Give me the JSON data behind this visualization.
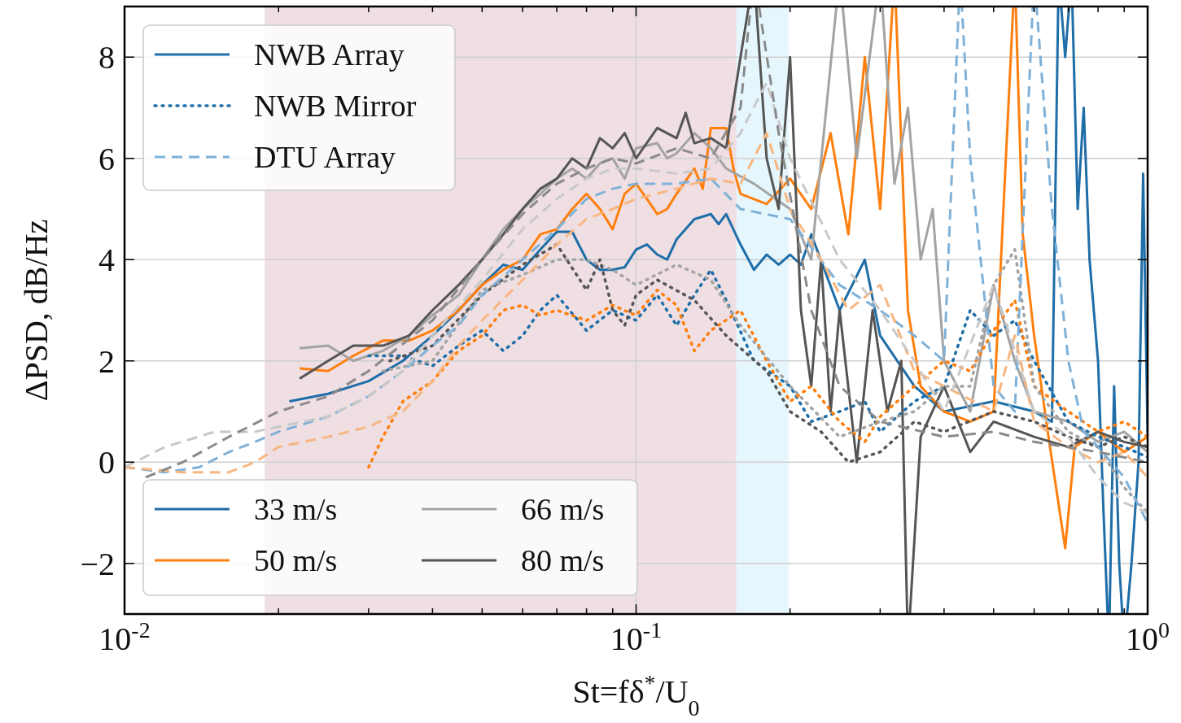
{
  "chart_data": {
    "type": "line",
    "xlabel": "St=fδ$^{*}$/U$_{0}$",
    "ylabel": "ΔPSD, dB/Hz",
    "log": "x",
    "grid": true,
    "xlim": [
      0.01,
      1
    ],
    "ylim": [
      -3,
      9
    ],
    "xticks": [
      {
        "value": 0.01,
        "label": "10$^{-2}$"
      },
      {
        "value": 0.02,
        "label": null
      },
      {
        "value": 0.03,
        "label": null
      },
      {
        "value": 0.04,
        "label": null
      },
      {
        "value": 0.05,
        "label": null
      },
      {
        "value": 0.06,
        "label": null
      },
      {
        "value": 0.07,
        "label": null
      },
      {
        "value": 0.08,
        "label": null
      },
      {
        "value": 0.09,
        "label": null
      },
      {
        "value": 0.1,
        "label": "10$^{-1}$"
      },
      {
        "value": 0.2,
        "label": null
      },
      {
        "value": 0.3,
        "label": null
      },
      {
        "value": 0.4,
        "label": null
      },
      {
        "value": 0.5,
        "label": null
      },
      {
        "value": 0.6,
        "label": null
      },
      {
        "value": 0.7,
        "label": null
      },
      {
        "value": 0.8,
        "label": null
      },
      {
        "value": 0.9,
        "label": null
      },
      {
        "value": 1,
        "label": "10$^{0}$"
      }
    ],
    "yticks": [
      -2,
      0,
      2,
      4,
      6,
      8
    ],
    "bands": [
      {
        "axis": "x",
        "from": 0.0188,
        "to": 0.199,
        "color": "#e6f6fd"
      },
      {
        "axis": "x",
        "from": 0.0188,
        "to": 0.157,
        "color": "#efdfe3"
      }
    ],
    "annotations": [
      "NWB Array",
      "NWB Mirror",
      "DTU Array",
      "33 m/s",
      "50 m/s",
      "66 m/s",
      "80 m/s"
    ],
    "series": [
      {
        "color": "#1f6ea8",
        "line_style": "solid",
        "x": [
          0.021,
          0.025,
          0.03,
          0.035,
          0.04,
          0.045,
          0.05,
          0.055,
          0.06,
          0.065,
          0.07,
          0.075,
          0.08,
          0.085,
          0.09,
          0.095,
          0.1,
          0.105,
          0.11,
          0.115,
          0.12,
          0.13,
          0.14,
          0.145,
          0.15,
          0.16,
          0.17,
          0.18,
          0.19,
          0.2,
          0.21,
          0.22,
          0.25,
          0.28,
          0.3,
          0.35,
          0.4,
          0.5,
          0.6,
          0.65,
          0.67,
          0.69,
          0.71,
          0.73,
          0.75,
          0.77,
          0.8,
          0.82,
          0.84,
          0.86,
          0.88,
          0.9,
          0.93,
          0.96,
          0.98,
          1.0
        ],
        "values": [
          1.2,
          1.35,
          1.6,
          2.0,
          2.5,
          3.0,
          3.5,
          3.9,
          3.8,
          4.2,
          4.55,
          4.55,
          4.0,
          3.8,
          3.8,
          3.85,
          4.2,
          4.3,
          4.1,
          4.0,
          4.4,
          4.8,
          4.9,
          4.7,
          4.9,
          4.3,
          3.8,
          4.1,
          3.9,
          4.1,
          3.9,
          4.5,
          3.0,
          4.0,
          2.5,
          1.5,
          1.0,
          1.2,
          1.0,
          0.8,
          null,
          8.0,
          null,
          5,
          7,
          4,
          2,
          -1,
          null,
          1.5,
          -2,
          null,
          -2,
          0,
          5.7,
          0.5
        ]
      },
      {
        "color": "#ff7f0e",
        "line_style": "solid",
        "x": [
          0.022,
          0.025,
          0.028,
          0.032,
          0.036,
          0.04,
          0.045,
          0.05,
          0.055,
          0.06,
          0.065,
          0.07,
          0.075,
          0.08,
          0.085,
          0.09,
          0.095,
          0.1,
          0.105,
          0.11,
          0.115,
          0.12,
          0.13,
          0.135,
          0.14,
          0.15,
          0.155,
          0.16,
          0.18,
          0.2,
          0.22,
          0.24,
          0.26,
          0.28,
          0.3,
          0.32,
          0.34,
          0.36,
          0.4,
          0.45,
          0.5,
          0.55,
          0.57,
          0.6,
          0.64,
          0.69,
          0.72,
          0.8,
          0.9,
          1.0
        ],
        "values": [
          1.85,
          1.8,
          2.1,
          2.4,
          2.4,
          2.6,
          3.0,
          3.5,
          3.8,
          4.0,
          4.5,
          4.6,
          5.0,
          5.3,
          5.0,
          4.6,
          5.3,
          5.5,
          5.2,
          4.9,
          5.0,
          5.3,
          5.8,
          5.4,
          6.6,
          6.6,
          5.8,
          5.3,
          5.1,
          5.6,
          5.0,
          6.5,
          4.5,
          8.0,
          5.0,
          null,
          3.0,
          1.5,
          1.0,
          0.8,
          1.0,
          null,
          4.5,
          2.5,
          0.5,
          -1.7,
          0.3,
          0.6,
          0.2,
          0.5
        ]
      },
      {
        "color": "#a3a3a3",
        "line_style": "solid",
        "x": [
          0.022,
          0.025,
          0.028,
          0.032,
          0.036,
          0.04,
          0.045,
          0.05,
          0.055,
          0.06,
          0.065,
          0.07,
          0.075,
          0.08,
          0.085,
          0.09,
          0.095,
          0.1,
          0.11,
          0.115,
          0.12,
          0.13,
          0.14,
          0.15,
          0.17,
          0.2,
          0.22,
          0.25,
          0.27,
          0.3,
          0.32,
          0.34,
          0.36,
          0.38,
          0.4,
          0.45,
          0.5,
          0.55,
          0.6,
          0.7,
          0.8,
          0.9,
          1.0
        ],
        "values": [
          2.25,
          2.3,
          2.0,
          2.2,
          2.5,
          2.9,
          3.3,
          4.0,
          4.6,
          5.0,
          5.3,
          5.6,
          5.8,
          5.6,
          5.9,
          6.0,
          5.6,
          6.2,
          6.3,
          6.0,
          6.1,
          6.5,
          6.2,
          5.8,
          5.5,
          5.0,
          4.0,
          null,
          6.0,
          null,
          5.5,
          7.0,
          4.0,
          5.0,
          2.0,
          1.0,
          3.5,
          2.0,
          1.0,
          0.8,
          0.4,
          0.6,
          0.2
        ]
      },
      {
        "color": "#555555",
        "line_style": "solid",
        "x": [
          0.022,
          0.025,
          0.028,
          0.032,
          0.036,
          0.04,
          0.045,
          0.05,
          0.055,
          0.06,
          0.065,
          0.07,
          0.075,
          0.08,
          0.085,
          0.09,
          0.095,
          0.1,
          0.11,
          0.12,
          0.125,
          0.13,
          0.14,
          0.15,
          0.16,
          0.17,
          0.18,
          0.19,
          0.2,
          0.21,
          0.22,
          0.23,
          0.24,
          0.25,
          0.27,
          0.29,
          0.31,
          0.33,
          0.34,
          0.36,
          0.4,
          0.45,
          0.5,
          0.6,
          0.7,
          0.8,
          0.9,
          1.0
        ],
        "values": [
          1.65,
          2.0,
          2.3,
          2.3,
          2.5,
          3.0,
          3.5,
          4.0,
          4.5,
          5.0,
          5.4,
          5.6,
          6.0,
          5.8,
          6.4,
          6.2,
          6.5,
          6.0,
          6.6,
          6.4,
          6.9,
          6.3,
          6.4,
          6.2,
          8.0,
          null,
          6.0,
          5.0,
          8.0,
          3.0,
          1.5,
          4.0,
          1.0,
          3.0,
          0.0,
          3.0,
          1.0,
          2.0,
          null,
          0.5,
          1.5,
          0.2,
          0.8,
          0.5,
          0.3,
          0.6,
          0.4,
          0.3
        ]
      },
      {
        "color": "#1f6ea8",
        "line_style": "dotted",
        "x": [
          0.03,
          0.035,
          0.04,
          0.045,
          0.05,
          0.055,
          0.06,
          0.065,
          0.07,
          0.08,
          0.09,
          0.1,
          0.11,
          0.12,
          0.13,
          0.14,
          0.15,
          0.17,
          0.2,
          0.22,
          0.25,
          0.28,
          0.3,
          0.35,
          0.4,
          0.45,
          0.5,
          0.55,
          0.6,
          0.7,
          0.8,
          0.9,
          1.0
        ],
        "values": [
          2.1,
          2.1,
          1.9,
          2.3,
          2.6,
          2.2,
          2.5,
          3.0,
          3.3,
          2.6,
          3.0,
          2.8,
          3.3,
          2.7,
          3.3,
          3.8,
          3.2,
          2.0,
          1.5,
          0.8,
          1.0,
          1.2,
          0.6,
          1.2,
          1.5,
          3.0,
          2.5,
          2.8,
          2.0,
          0.8,
          0.5,
          0.3,
          0.1
        ]
      },
      {
        "color": "#ff7f0e",
        "line_style": "dotted",
        "x": [
          0.03,
          0.032,
          0.035,
          0.04,
          0.045,
          0.05,
          0.055,
          0.06,
          0.065,
          0.07,
          0.08,
          0.09,
          0.1,
          0.11,
          0.12,
          0.13,
          0.14,
          0.16,
          0.18,
          0.2,
          0.22,
          0.25,
          0.28,
          0.3,
          0.35,
          0.4,
          0.45,
          0.5,
          0.55,
          0.6,
          0.7,
          0.8,
          0.9,
          1.0
        ],
        "values": [
          -0.1,
          0.5,
          1.2,
          1.6,
          2.2,
          2.5,
          3.0,
          3.1,
          2.9,
          3.0,
          2.8,
          3.1,
          2.9,
          3.4,
          3.1,
          2.2,
          2.6,
          3.0,
          2.0,
          1.2,
          1.5,
          0.8,
          0.4,
          0.9,
          1.5,
          2.0,
          1.8,
          2.6,
          3.2,
          1.5,
          1.0,
          0.6,
          0.8,
          0.5
        ]
      },
      {
        "color": "#a3a3a3",
        "line_style": "dotted",
        "x": [
          0.032,
          0.04,
          0.05,
          0.06,
          0.07,
          0.08,
          0.09,
          0.1,
          0.12,
          0.14,
          0.16,
          0.2,
          0.25,
          0.3,
          0.35,
          0.4,
          0.45,
          0.5,
          0.55,
          0.6,
          0.7,
          0.8,
          0.9,
          1.0
        ],
        "values": [
          1.8,
          2.0,
          3.4,
          3.7,
          4.0,
          4.0,
          3.8,
          3.5,
          3.9,
          3.6,
          2.7,
          1.5,
          0.5,
          0.8,
          1.0,
          1.5,
          1.5,
          3.5,
          4.2,
          1.5,
          0.6,
          0.3,
          -0.5,
          -1.0
        ]
      },
      {
        "color": "#555555",
        "line_style": "dotted",
        "x": [
          0.033,
          0.04,
          0.05,
          0.06,
          0.07,
          0.08,
          0.085,
          0.09,
          0.095,
          0.1,
          0.11,
          0.13,
          0.15,
          0.18,
          0.2,
          0.23,
          0.26,
          0.3,
          0.35,
          0.4,
          0.5,
          0.6,
          0.7,
          0.8,
          0.9,
          1.0
        ],
        "values": [
          2.0,
          2.3,
          3.3,
          3.9,
          4.3,
          3.4,
          4.0,
          3.0,
          2.7,
          3.3,
          3.6,
          3.2,
          2.5,
          1.8,
          1.0,
          0.6,
          0.0,
          0.2,
          0.8,
          0.6,
          1.0,
          0.8,
          0.5,
          0.3,
          0.5,
          0.3
        ]
      },
      {
        "color": "#7fb1d8",
        "line_style": "dashed",
        "x": [
          0.01,
          0.012,
          0.014,
          0.016,
          0.018,
          0.02,
          0.025,
          0.03,
          0.035,
          0.04,
          0.045,
          0.05,
          0.06,
          0.07,
          0.08,
          0.09,
          0.1,
          0.12,
          0.14,
          0.16,
          0.2,
          0.25,
          0.3,
          0.35,
          0.4,
          0.43,
          0.45,
          0.5,
          0.55,
          0.6,
          0.65,
          0.7,
          0.75,
          0.8,
          0.9,
          1.0
        ],
        "values": [
          -0.1,
          -0.2,
          -0.1,
          0.2,
          0.4,
          0.6,
          0.9,
          1.3,
          1.8,
          2.3,
          2.7,
          3.3,
          4.0,
          4.6,
          5.2,
          5.4,
          5.5,
          5.5,
          5.6,
          5.0,
          4.8,
          3.5,
          3.0,
          2.5,
          2.0,
          null,
          6.0,
          1.5,
          1.0,
          null,
          5.0,
          2.0,
          0.6,
          0.3,
          -0.3,
          -1.2
        ]
      },
      {
        "color": "#f7b67f",
        "line_style": "dashed",
        "x": [
          0.01,
          0.013,
          0.016,
          0.018,
          0.02,
          0.025,
          0.03,
          0.035,
          0.04,
          0.045,
          0.05,
          0.06,
          0.07,
          0.08,
          0.09,
          0.1,
          0.12,
          0.14,
          0.16,
          0.18,
          0.2,
          0.23,
          0.26,
          0.3,
          0.35,
          0.4,
          0.5,
          0.55,
          0.6,
          0.7,
          0.8,
          0.9,
          1.0
        ],
        "values": [
          -0.1,
          -0.2,
          -0.2,
          0.0,
          0.3,
          0.5,
          0.7,
          1.0,
          1.6,
          2.3,
          2.8,
          3.6,
          4.3,
          4.8,
          5.0,
          5.2,
          5.4,
          5.6,
          5.5,
          6.5,
          5.0,
          4.0,
          3.0,
          3.5,
          1.8,
          1.5,
          1.0,
          2.5,
          0.8,
          0.3,
          0.0,
          0.2,
          -0.3
        ]
      },
      {
        "color": "#c8c8c8",
        "line_style": "dashed",
        "x": [
          0.01,
          0.012,
          0.015,
          0.018,
          0.02,
          0.025,
          0.03,
          0.035,
          0.04,
          0.05,
          0.06,
          0.07,
          0.08,
          0.09,
          0.1,
          0.12,
          0.14,
          0.16,
          0.18,
          0.2,
          0.25,
          0.3,
          0.35,
          0.4,
          0.5,
          0.6,
          0.7,
          0.8,
          0.9,
          1.0
        ],
        "values": [
          -0.1,
          0.3,
          0.6,
          0.6,
          0.7,
          0.9,
          1.3,
          1.8,
          2.5,
          3.6,
          4.6,
          5.2,
          5.6,
          5.8,
          5.8,
          5.7,
          5.8,
          6.5,
          7.5,
          6.0,
          4.0,
          3.0,
          2.0,
          1.0,
          3.5,
          1.0,
          0.5,
          -0.3,
          -0.8,
          -1.0
        ]
      },
      {
        "color": "#8a8a8a",
        "line_style": "dashed",
        "x": [
          0.011,
          0.013,
          0.016,
          0.02,
          0.025,
          0.03,
          0.04,
          0.05,
          0.06,
          0.07,
          0.08,
          0.09,
          0.1,
          0.12,
          0.14,
          0.16,
          0.17,
          0.19,
          0.22,
          0.25,
          0.3,
          0.4,
          0.5,
          0.6,
          0.8,
          1.0
        ],
        "values": [
          -0.3,
          0.0,
          0.5,
          1.0,
          1.3,
          1.8,
          2.8,
          4.0,
          4.9,
          5.5,
          5.8,
          6.0,
          5.9,
          6.2,
          6.0,
          7.0,
          null,
          6.5,
          3.0,
          1.5,
          0.8,
          0.5,
          0.6,
          0.4,
          0.2,
          0.0
        ]
      }
    ]
  }
}
